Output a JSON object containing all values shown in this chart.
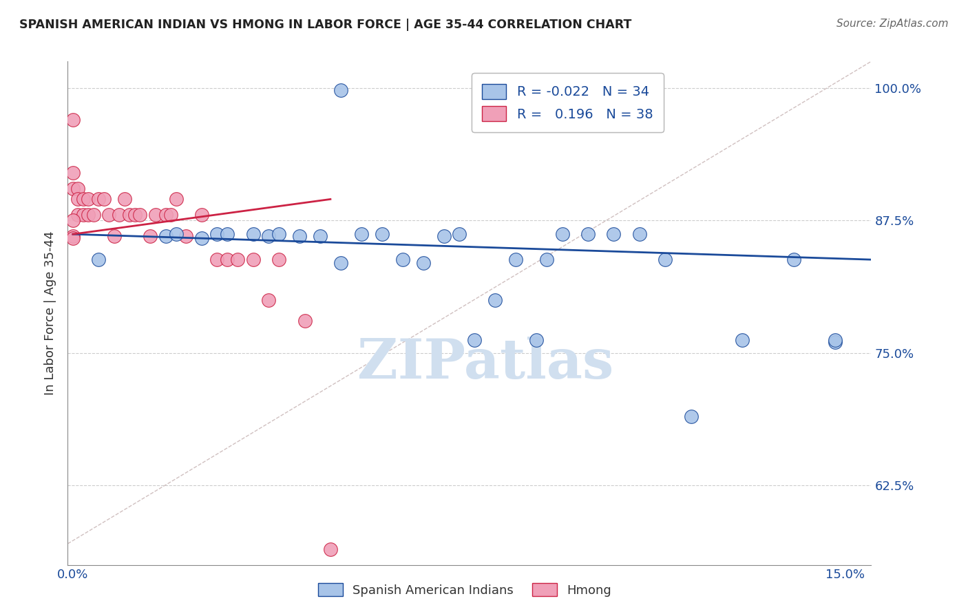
{
  "title": "SPANISH AMERICAN INDIAN VS HMONG IN LABOR FORCE | AGE 35-44 CORRELATION CHART",
  "source": "Source: ZipAtlas.com",
  "ylabel": "In Labor Force | Age 35-44",
  "xlim": [
    -0.001,
    0.155
  ],
  "ylim": [
    0.55,
    1.025
  ],
  "ytick_values_right": [
    0.625,
    0.75,
    0.875,
    1.0
  ],
  "ytick_labels_right": [
    "62.5%",
    "75.0%",
    "87.5%",
    "100.0%"
  ],
  "xtick_values": [
    0.0,
    0.15
  ],
  "xtick_labels": [
    "0.0%",
    "15.0%"
  ],
  "legend_label1": "R = -0.022",
  "legend_n1": "N = 34",
  "legend_label2": "R =   0.196",
  "legend_n2": "N = 38",
  "legend_bottom1": "Spanish American Indians",
  "legend_bottom2": "Hmong",
  "R_blue": -0.022,
  "N_blue": 34,
  "R_pink": 0.196,
  "N_pink": 38,
  "blue_color": "#A8C4E8",
  "pink_color": "#F0A0B8",
  "blue_line_color": "#1A4A9A",
  "pink_line_color": "#CC2244",
  "diagonal_color": "#D0C0C0",
  "watermark_color": "#D0DFEF",
  "blue_scatter_x": [
    0.052,
    0.005,
    0.018,
    0.02,
    0.025,
    0.028,
    0.03,
    0.035,
    0.038,
    0.04,
    0.044,
    0.048,
    0.052,
    0.056,
    0.06,
    0.064,
    0.068,
    0.072,
    0.075,
    0.078,
    0.082,
    0.086,
    0.09,
    0.092,
    0.095,
    0.1,
    0.105,
    0.11,
    0.115,
    0.12,
    0.13,
    0.14,
    0.148,
    0.148
  ],
  "blue_scatter_y": [
    0.998,
    0.838,
    0.86,
    0.862,
    0.858,
    0.862,
    0.862,
    0.862,
    0.86,
    0.862,
    0.86,
    0.86,
    0.835,
    0.862,
    0.862,
    0.838,
    0.835,
    0.86,
    0.862,
    0.762,
    0.8,
    0.838,
    0.762,
    0.838,
    0.862,
    0.862,
    0.862,
    0.862,
    0.838,
    0.69,
    0.762,
    0.838,
    0.76,
    0.762
  ],
  "pink_scatter_x": [
    0.0,
    0.0,
    0.0,
    0.001,
    0.001,
    0.001,
    0.002,
    0.002,
    0.003,
    0.003,
    0.004,
    0.005,
    0.006,
    0.007,
    0.008,
    0.009,
    0.01,
    0.011,
    0.012,
    0.013,
    0.015,
    0.016,
    0.018,
    0.019,
    0.02,
    0.022,
    0.025,
    0.028,
    0.03,
    0.032,
    0.035,
    0.038,
    0.04,
    0.045,
    0.05,
    0.0,
    0.0,
    0.0
  ],
  "pink_scatter_y": [
    0.97,
    0.92,
    0.905,
    0.905,
    0.895,
    0.88,
    0.895,
    0.88,
    0.88,
    0.895,
    0.88,
    0.895,
    0.895,
    0.88,
    0.86,
    0.88,
    0.895,
    0.88,
    0.88,
    0.88,
    0.86,
    0.88,
    0.88,
    0.88,
    0.895,
    0.86,
    0.88,
    0.838,
    0.838,
    0.838,
    0.838,
    0.8,
    0.838,
    0.78,
    0.565,
    0.86,
    0.875,
    0.858
  ],
  "blue_trendline_x": [
    0.0,
    0.155
  ],
  "blue_trendline_y": [
    0.862,
    0.838
  ],
  "pink_trendline_x": [
    0.0,
    0.05
  ],
  "pink_trendline_y": [
    0.862,
    0.895
  ]
}
